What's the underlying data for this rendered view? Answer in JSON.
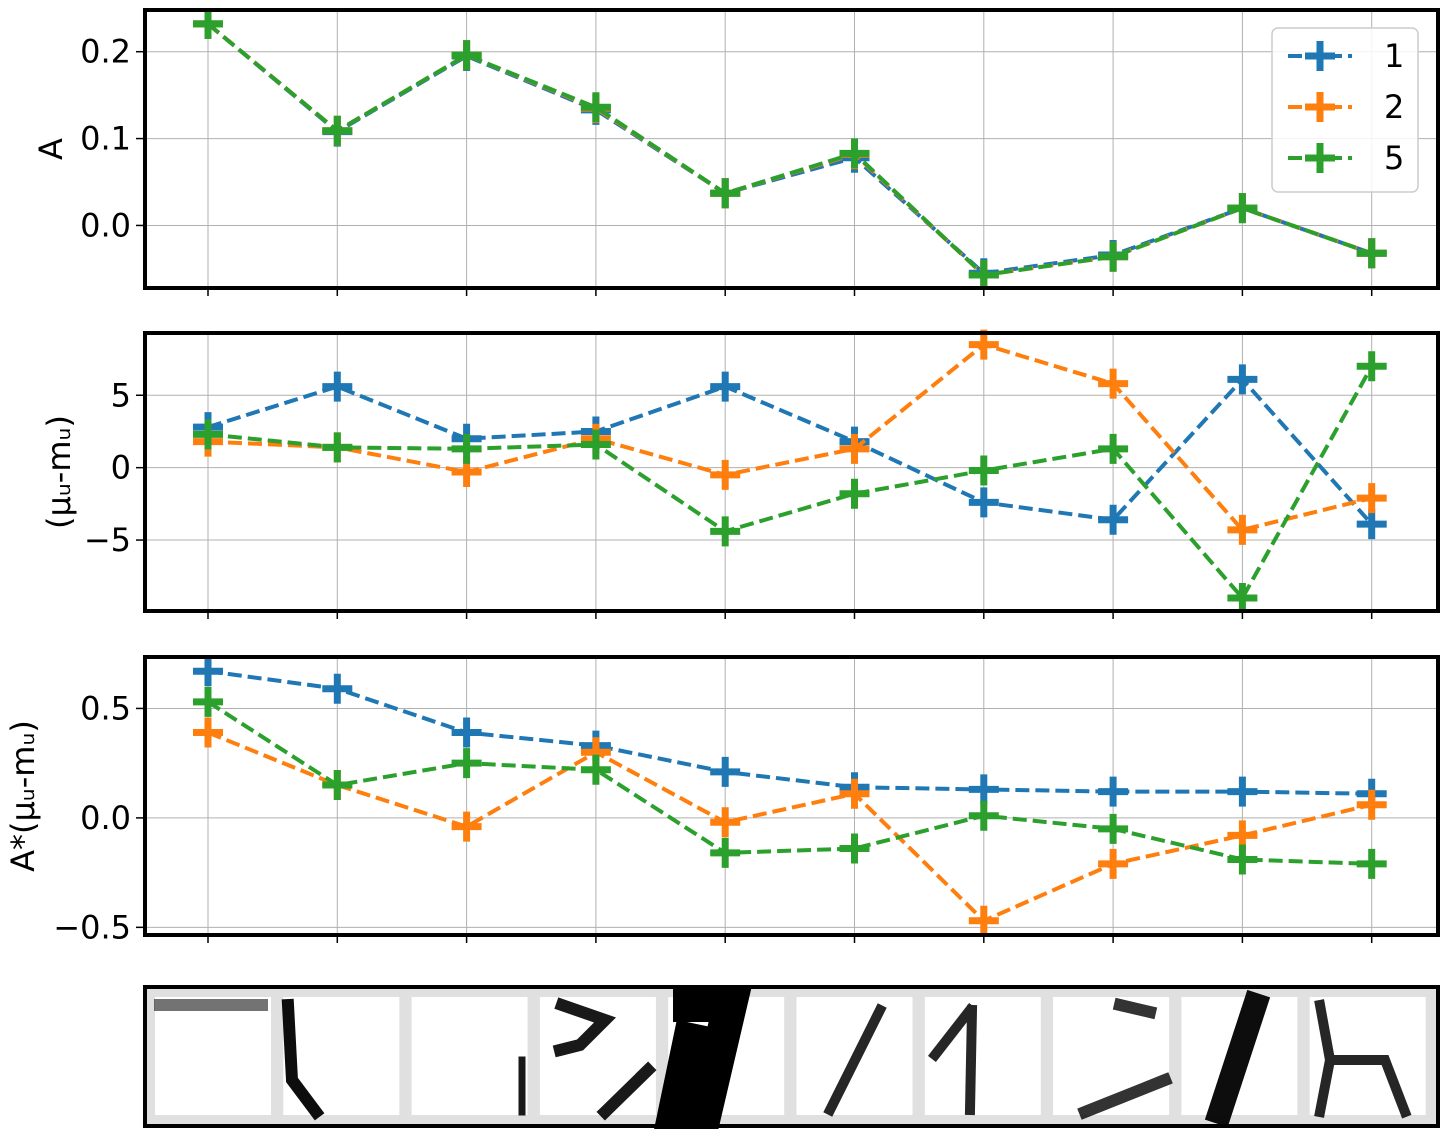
{
  "chart_data": [
    {
      "type": "line",
      "ylabel": "A",
      "ylim": [
        -0.072,
        0.248
      ],
      "yticks": [
        0.0,
        0.1,
        0.2
      ],
      "yticklabels": [
        "0.0",
        "0.1",
        "0.2"
      ],
      "x": [
        0,
        1,
        2,
        3,
        4,
        5,
        6,
        7,
        8,
        9
      ],
      "grid": true,
      "legend": {
        "placement": "top-right",
        "entries": [
          "1",
          "2",
          "5"
        ]
      },
      "series": [
        {
          "name": "1",
          "color": "#1f77b4",
          "values": [
            0.232,
            0.108,
            0.195,
            0.133,
            0.037,
            0.078,
            -0.055,
            -0.034,
            0.02,
            -0.032
          ]
        },
        {
          "name": "2",
          "color": "#ff7f0e",
          "values": [
            0.232,
            0.109,
            0.196,
            0.135,
            0.037,
            0.082,
            -0.057,
            -0.036,
            0.02,
            -0.032
          ]
        },
        {
          "name": "5",
          "color": "#2ca02c",
          "values": [
            0.232,
            0.109,
            0.196,
            0.136,
            0.037,
            0.083,
            -0.057,
            -0.036,
            0.02,
            -0.032
          ]
        }
      ]
    },
    {
      "type": "line",
      "ylabel": "(μᵤ-mᵤ)",
      "ylim": [
        -9.9,
        9.3
      ],
      "yticks": [
        -5,
        0,
        5
      ],
      "yticklabels": [
        "−5",
        "0",
        "5"
      ],
      "x": [
        0,
        1,
        2,
        3,
        4,
        5,
        6,
        7,
        8,
        9
      ],
      "grid": true,
      "series": [
        {
          "name": "1",
          "color": "#1f77b4",
          "values": [
            2.8,
            5.6,
            2.0,
            2.5,
            5.6,
            1.8,
            -2.4,
            -3.6,
            6.1,
            -3.9
          ]
        },
        {
          "name": "2",
          "color": "#ff7f0e",
          "values": [
            1.8,
            1.4,
            -0.3,
            2.0,
            -0.5,
            1.3,
            8.5,
            5.8,
            -4.3,
            -2.1
          ]
        },
        {
          "name": "5",
          "color": "#2ca02c",
          "values": [
            2.3,
            1.4,
            1.3,
            1.6,
            -4.4,
            -1.8,
            -0.2,
            1.3,
            -9.0,
            7.0
          ]
        }
      ]
    },
    {
      "type": "line",
      "ylabel": "A*(μᵤ-mᵤ)",
      "ylim": [
        -0.535,
        0.735
      ],
      "yticks": [
        -0.5,
        0.0,
        0.5
      ],
      "yticklabels": [
        "−0.5",
        "0.0",
        "0.5"
      ],
      "x": [
        0,
        1,
        2,
        3,
        4,
        5,
        6,
        7,
        8,
        9
      ],
      "grid": true,
      "series": [
        {
          "name": "1",
          "color": "#1f77b4",
          "values": [
            0.67,
            0.59,
            0.39,
            0.33,
            0.21,
            0.14,
            0.13,
            0.12,
            0.12,
            0.11
          ]
        },
        {
          "name": "2",
          "color": "#ff7f0e",
          "values": [
            0.39,
            0.15,
            -0.04,
            0.3,
            -0.02,
            0.11,
            -0.47,
            -0.21,
            -0.08,
            0.06
          ]
        },
        {
          "name": "5",
          "color": "#2ca02c",
          "values": [
            0.53,
            0.15,
            0.25,
            0.22,
            -0.16,
            -0.14,
            0.01,
            -0.05,
            -0.19,
            -0.21
          ]
        }
      ]
    }
  ],
  "image_strip": {
    "count": 10,
    "description_icons": [
      "digit-patch-1",
      "digit-patch-2",
      "digit-patch-3",
      "digit-patch-4",
      "digit-patch-5",
      "digit-patch-6",
      "digit-patch-7",
      "digit-patch-8",
      "digit-patch-9",
      "digit-patch-10"
    ]
  }
}
